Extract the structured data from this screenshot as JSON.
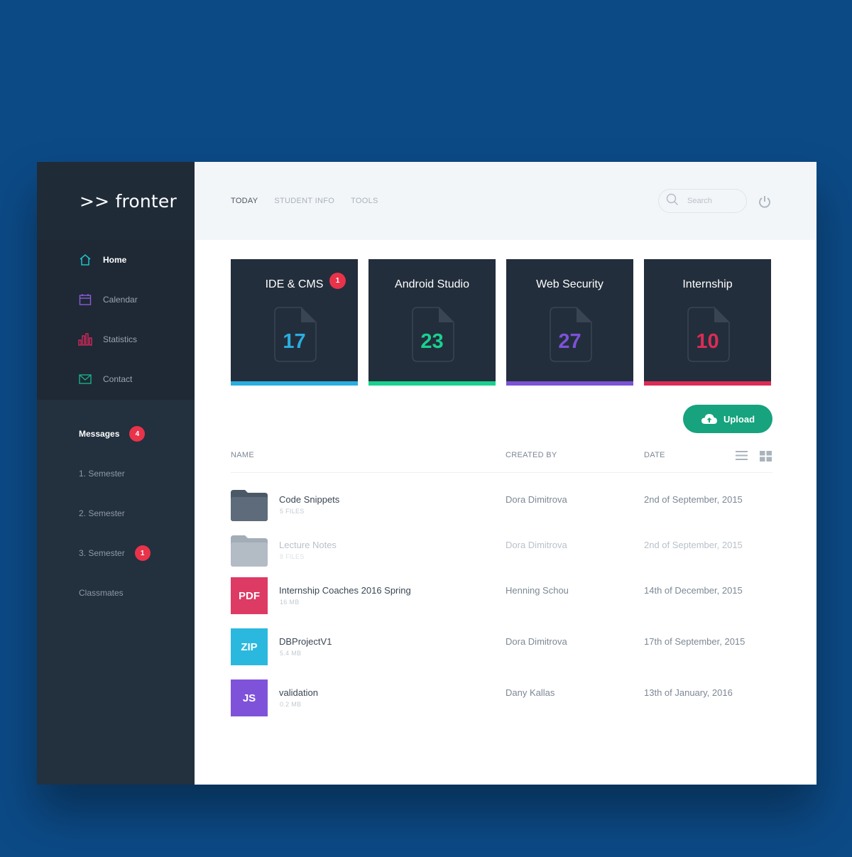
{
  "brand": {
    "logo_text": ">> fronter"
  },
  "sidebar": {
    "nav": [
      {
        "label": "Home",
        "icon": "home-icon",
        "color": "#1ec2c9",
        "active": true
      },
      {
        "label": "Calendar",
        "icon": "calendar-icon",
        "color": "#8a5cd8",
        "active": false
      },
      {
        "label": "Statistics",
        "icon": "statistics-icon",
        "color": "#d4285a",
        "active": false
      },
      {
        "label": "Contact",
        "icon": "mail-icon",
        "color": "#1cae86",
        "active": false
      }
    ],
    "sub": [
      {
        "label": "Messages",
        "badge": "4"
      },
      {
        "label": "1. Semester",
        "badge": ""
      },
      {
        "label": "2. Semester",
        "badge": ""
      },
      {
        "label": "3. Semester",
        "badge": "1"
      },
      {
        "label": "Classmates",
        "badge": ""
      }
    ]
  },
  "topbar": {
    "tabs": [
      "TODAY",
      "STUDENT INFO",
      "TOOLS"
    ],
    "search_placeholder": "Search"
  },
  "cards": [
    {
      "title": "IDE & CMS",
      "count": "17",
      "accent": "#2aaee0",
      "badge": "1"
    },
    {
      "title": "Android Studio",
      "count": "23",
      "accent": "#19d18f",
      "badge": ""
    },
    {
      "title": "Web Security",
      "count": "27",
      "accent": "#7c52d6",
      "badge": ""
    },
    {
      "title": "Internship",
      "count": "10",
      "accent": "#dc2c55",
      "badge": ""
    }
  ],
  "upload_label": "Upload",
  "table": {
    "headers": {
      "name": "NAME",
      "created_by": "CREATED BY",
      "date": "DATE"
    },
    "rows": [
      {
        "type": "folder",
        "icon_label": "",
        "icon_color": "#5d6b7a",
        "name": "Code Snippets",
        "meta": "5 FILES",
        "created_by": "Dora Dimitrova",
        "date": "2nd of September, 2015",
        "faded": false
      },
      {
        "type": "folder",
        "icon_label": "",
        "icon_color": "#b3bcc5",
        "name": "Lecture Notes",
        "meta": "8 FILES",
        "created_by": "Dora Dimitrova",
        "date": "2nd of September, 2015",
        "faded": true
      },
      {
        "type": "file",
        "icon_label": "PDF",
        "icon_color": "#dd3a64",
        "name": "Internship Coaches 2016 Spring",
        "meta": "16 MB",
        "created_by": "Henning Schou",
        "date": "14th of December, 2015",
        "faded": false
      },
      {
        "type": "file",
        "icon_label": "ZIP",
        "icon_color": "#2bb8de",
        "name": "DBProjectV1",
        "meta": "5.4 MB",
        "created_by": "Dora Dimitrova",
        "date": "17th of September, 2015",
        "faded": false
      },
      {
        "type": "file",
        "icon_label": "JS",
        "icon_color": "#7f53d9",
        "name": "validation",
        "meta": "0.2 MB",
        "created_by": "Dany Kallas",
        "date": "13th of January, 2016",
        "faded": false
      }
    ]
  }
}
